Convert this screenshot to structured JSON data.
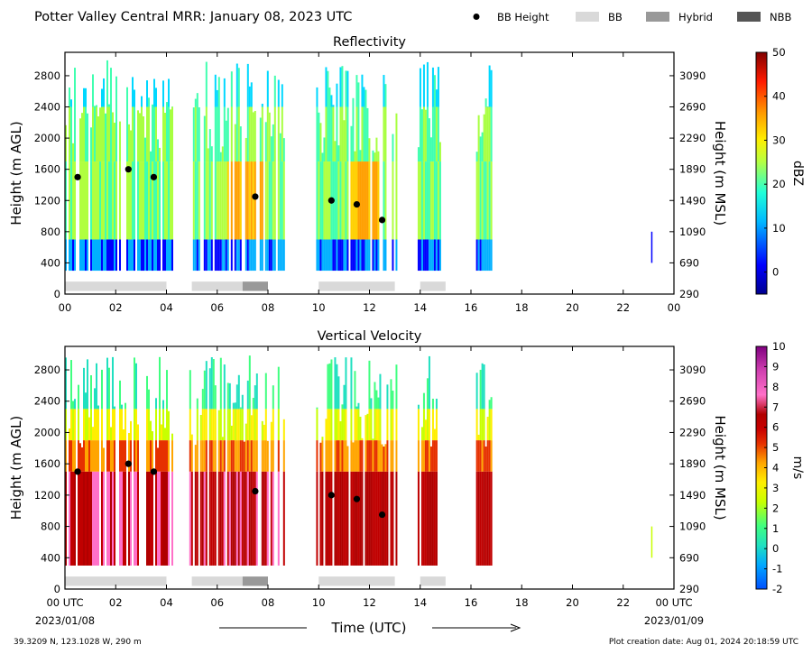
{
  "header": {
    "title": "Potter Valley Central MRR:  January 08, 2023 UTC"
  },
  "legend": [
    {
      "label": "BB Height",
      "kind": "dot",
      "color": "#000000"
    },
    {
      "label": "BB",
      "kind": "box",
      "color": "#d9d9d9"
    },
    {
      "label": "Hybrid",
      "kind": "box",
      "color": "#999999"
    },
    {
      "label": "NBB",
      "kind": "box",
      "color": "#555555"
    }
  ],
  "footer": {
    "location": "39.3209 N, 123.1028 W, 290 m",
    "creation": "Plot creation date: Aug 01, 2024 20:18:59 UTC",
    "xlabel": "Time (UTC)",
    "date_left": "2023/01/08",
    "date_right": "2023/01/09"
  },
  "colors": {
    "bb_strip": "#d9d9d9",
    "hybrid_strip": "#999999",
    "bb_dot": "#000000"
  },
  "chart_data": [
    {
      "type": "heatmap",
      "title": "Reflectivity",
      "ylabel": "Height (m AGL)",
      "ylabel_right": "Height (m MSL)",
      "colorbar_label": "dBZ",
      "x_range_hours": [
        0,
        24
      ],
      "x_ticks": [
        "00",
        "02",
        "04",
        "06",
        "08",
        "10",
        "12",
        "14",
        "16",
        "18",
        "20",
        "22",
        "00"
      ],
      "y_range_m": [
        0,
        3100
      ],
      "y_ticks": [
        "0",
        "400",
        "800",
        "1200",
        "1600",
        "2000",
        "2400",
        "2800"
      ],
      "y_right_ticks": [
        "290",
        "690",
        "1090",
        "1490",
        "1890",
        "2290",
        "2690",
        "3090"
      ],
      "colorbar_range": [
        -5,
        50
      ],
      "colorbar_ticks": [
        "0",
        "10",
        "20",
        "30",
        "40",
        "50"
      ],
      "bb_height_points": [
        {
          "time_h": 0.5,
          "height_m": 1500
        },
        {
          "time_h": 2.5,
          "height_m": 1600
        },
        {
          "time_h": 3.5,
          "height_m": 1500
        },
        {
          "time_h": 7.5,
          "height_m": 1250
        },
        {
          "time_h": 10.5,
          "height_m": 1200
        },
        {
          "time_h": 11.5,
          "height_m": 1150
        },
        {
          "time_h": 12.5,
          "height_m": 950
        }
      ],
      "bb_type_segments": [
        {
          "start_h": 0.0,
          "end_h": 4.0,
          "type": "BB"
        },
        {
          "start_h": 5.0,
          "end_h": 7.0,
          "type": "BB"
        },
        {
          "start_h": 7.0,
          "end_h": 8.0,
          "type": "Hybrid"
        },
        {
          "start_h": 10.0,
          "end_h": 13.0,
          "type": "BB"
        },
        {
          "start_h": 14.0,
          "end_h": 15.0,
          "type": "BB"
        }
      ],
      "data_periods_h": [
        [
          0.0,
          4.2
        ],
        [
          4.9,
          8.6
        ],
        [
          9.9,
          13.1
        ],
        [
          13.9,
          14.8
        ],
        [
          16.2,
          16.8
        ]
      ]
    },
    {
      "type": "heatmap",
      "title": "Vertical Velocity",
      "ylabel": "Height (m AGL)",
      "ylabel_right": "Height (m MSL)",
      "colorbar_label": "m/s",
      "x_range_hours": [
        0,
        24
      ],
      "x_ticks": [
        "00 UTC",
        "02",
        "04",
        "06",
        "08",
        "10",
        "12",
        "14",
        "16",
        "18",
        "20",
        "22",
        "00 UTC"
      ],
      "y_range_m": [
        0,
        3100
      ],
      "y_ticks": [
        "0",
        "400",
        "800",
        "1200",
        "1600",
        "2000",
        "2400",
        "2800"
      ],
      "y_right_ticks": [
        "290",
        "690",
        "1090",
        "1490",
        "1890",
        "2290",
        "2690",
        "3090"
      ],
      "colorbar_range": [
        -2,
        10
      ],
      "colorbar_ticks": [
        "-2",
        "-1",
        "0",
        "1",
        "2",
        "3",
        "4",
        "5",
        "6",
        "7",
        "8",
        "9",
        "10"
      ],
      "bb_height_points": [
        {
          "time_h": 0.5,
          "height_m": 1500
        },
        {
          "time_h": 2.5,
          "height_m": 1600
        },
        {
          "time_h": 3.5,
          "height_m": 1500
        },
        {
          "time_h": 7.5,
          "height_m": 1250
        },
        {
          "time_h": 10.5,
          "height_m": 1200
        },
        {
          "time_h": 11.5,
          "height_m": 1150
        },
        {
          "time_h": 12.5,
          "height_m": 950
        }
      ],
      "bb_type_segments": [
        {
          "start_h": 0.0,
          "end_h": 4.0,
          "type": "BB"
        },
        {
          "start_h": 5.0,
          "end_h": 7.0,
          "type": "BB"
        },
        {
          "start_h": 7.0,
          "end_h": 8.0,
          "type": "Hybrid"
        },
        {
          "start_h": 10.0,
          "end_h": 13.0,
          "type": "BB"
        },
        {
          "start_h": 14.0,
          "end_h": 15.0,
          "type": "BB"
        }
      ],
      "data_periods_h": [
        [
          0.0,
          4.2
        ],
        [
          4.9,
          8.6
        ],
        [
          9.9,
          13.1
        ],
        [
          13.9,
          14.8
        ],
        [
          16.2,
          16.8
        ]
      ]
    }
  ]
}
